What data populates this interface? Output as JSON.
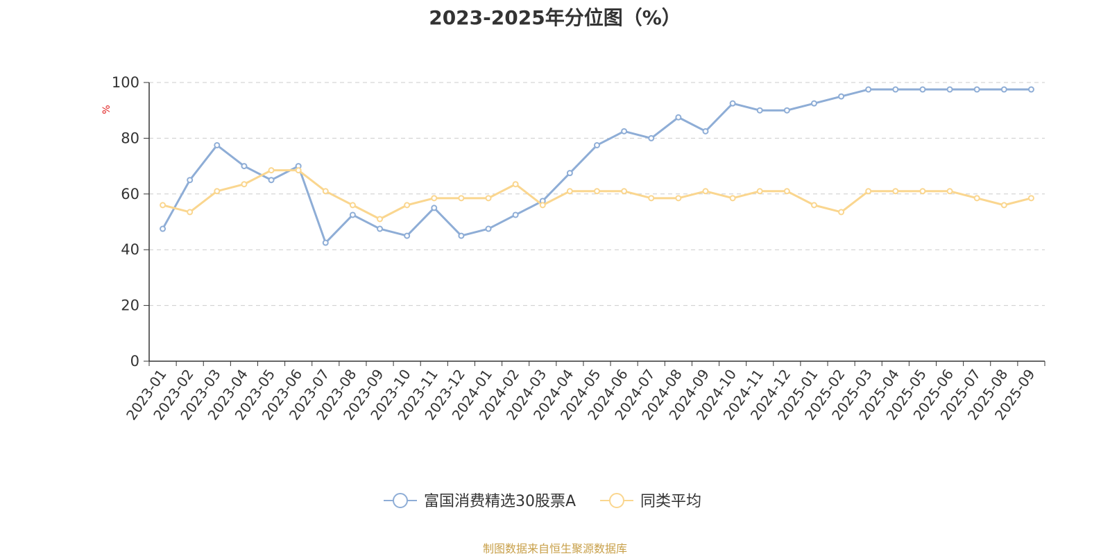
{
  "page": {
    "title": "2023-2025年分位图（%）",
    "source": "制图数据来自恒生聚源数据库"
  },
  "colors": {
    "series_a": "#8eadd6",
    "series_b": "#fad68f",
    "grid": "#cccccc",
    "axis": "#333333",
    "unit": "#e02020",
    "source": "#c8a04a"
  },
  "chart_data": {
    "type": "line",
    "title": "2023-2025年分位图（%）",
    "ylabel": "%",
    "xlabel": "",
    "ylim": [
      0,
      100
    ],
    "yticks": [
      0,
      20,
      40,
      60,
      80,
      100
    ],
    "grid": true,
    "legend": "bottom-center",
    "categories": [
      "2023-01",
      "2023-02",
      "2023-03",
      "2023-04",
      "2023-05",
      "2023-06",
      "2023-07",
      "2023-08",
      "2023-09",
      "2023-10",
      "2023-11",
      "2023-12",
      "2024-01",
      "2024-02",
      "2024-03",
      "2024-04",
      "2024-05",
      "2024-06",
      "2024-07",
      "2024-08",
      "2024-09",
      "2024-10",
      "2024-11",
      "2024-12",
      "2025-01",
      "2025-02",
      "2025-03",
      "2025-04",
      "2025-05",
      "2025-06",
      "2025-07",
      "2025-08",
      "2025-09"
    ],
    "series": [
      {
        "name": "富国消费精选30股票A",
        "values": [
          47.5,
          65,
          77.5,
          70,
          65,
          70,
          42.5,
          52.5,
          47.5,
          45,
          55,
          45,
          47.5,
          52.5,
          57.5,
          67.5,
          77.5,
          82.5,
          80,
          87.5,
          82.5,
          92.5,
          90,
          90,
          92.5,
          95,
          97.5,
          97.5,
          97.5,
          97.5,
          97.5,
          97.5,
          97.5
        ]
      },
      {
        "name": "同类平均",
        "values": [
          56,
          53.5,
          61,
          63.5,
          68.5,
          68.5,
          61,
          56,
          51,
          56,
          58.5,
          58.5,
          58.5,
          63.5,
          56,
          61,
          61,
          61,
          58.5,
          58.5,
          61,
          58.5,
          61,
          61,
          56,
          53.5,
          61,
          61,
          61,
          61,
          58.5,
          56,
          58.5
        ]
      }
    ]
  }
}
